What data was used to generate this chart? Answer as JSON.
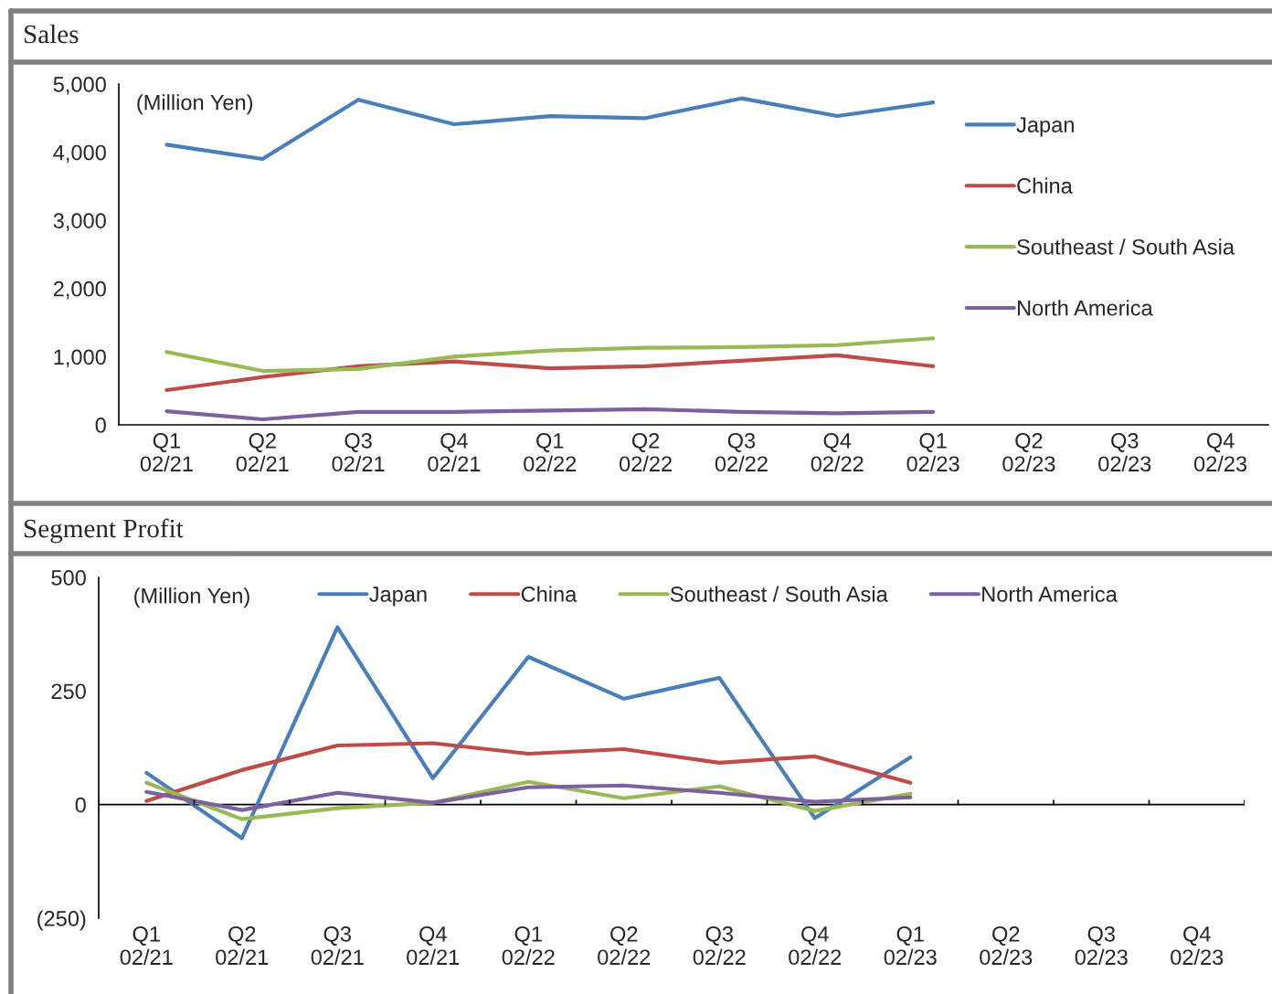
{
  "chart_data": [
    {
      "type": "line",
      "title": "Sales",
      "annotations": [
        "(Million Yen)"
      ],
      "categories": [
        "Q1\n02/21",
        "Q2\n02/21",
        "Q3\n02/21",
        "Q4\n02/21",
        "Q1\n02/22",
        "Q2\n02/22",
        "Q3\n02/22",
        "Q4\n02/22",
        "Q1\n02/23",
        "Q2\n02/23",
        "Q3\n02/23",
        "Q4\n02/23"
      ],
      "series": [
        {
          "name": "Japan",
          "color": "#4a7ebb",
          "values": [
            4110,
            3900,
            4770,
            4410,
            4530,
            4500,
            4790,
            4530,
            4730,
            null,
            null,
            null
          ]
        },
        {
          "name": "China",
          "color": "#be4b48",
          "values": [
            510,
            700,
            860,
            930,
            830,
            860,
            940,
            1020,
            860,
            null,
            null,
            null
          ]
        },
        {
          "name": "Southeast / South Asia",
          "color": "#98b954",
          "values": [
            1070,
            790,
            820,
            1000,
            1090,
            1130,
            1140,
            1170,
            1270,
            null,
            null,
            null
          ]
        },
        {
          "name": "North America",
          "color": "#7d60a0",
          "values": [
            200,
            80,
            190,
            190,
            210,
            230,
            190,
            170,
            190,
            null,
            null,
            null
          ]
        }
      ],
      "ylim": [
        0,
        5000
      ],
      "yticks": [
        {
          "value": 0,
          "label": "0"
        },
        {
          "value": 1000,
          "label": "1,000"
        },
        {
          "value": 2000,
          "label": "2,000"
        },
        {
          "value": 3000,
          "label": "3,000"
        },
        {
          "value": 4000,
          "label": "4,000"
        },
        {
          "value": 5000,
          "label": "5,000"
        }
      ],
      "grid": false,
      "legend": "right",
      "marker": "none",
      "line_style": "solid"
    },
    {
      "type": "line",
      "title": "Segment Profit",
      "annotations": [
        "(Million Yen)"
      ],
      "categories": [
        "Q1\n02/21",
        "Q2\n02/21",
        "Q3\n02/21",
        "Q4\n02/21",
        "Q1\n02/22",
        "Q2\n02/22",
        "Q3\n02/22",
        "Q4\n02/22",
        "Q1\n02/23",
        "Q2\n02/23",
        "Q3\n02/23",
        "Q4\n02/23"
      ],
      "series": [
        {
          "name": "Japan",
          "color": "#4a7ebb",
          "values": [
            70,
            -74,
            390,
            58,
            325,
            233,
            279,
            -30,
            104,
            null,
            null,
            null
          ]
        },
        {
          "name": "China",
          "color": "#be4b48",
          "values": [
            8,
            76,
            130,
            135,
            112,
            122,
            92,
            106,
            48,
            null,
            null,
            null
          ]
        },
        {
          "name": "Southeast / South Asia",
          "color": "#98b954",
          "values": [
            48,
            -32,
            -8,
            4,
            50,
            14,
            40,
            -14,
            24,
            null,
            null,
            null
          ]
        },
        {
          "name": "North America",
          "color": "#7d60a0",
          "values": [
            28,
            -12,
            26,
            4,
            38,
            42,
            26,
            6,
            16,
            null,
            null,
            null
          ]
        }
      ],
      "ylim": [
        -250,
        500
      ],
      "yticks": [
        {
          "value": -250,
          "label": "(250)"
        },
        0,
        250,
        500
      ],
      "ref_lines": [
        {
          "axis": "y",
          "value": 0,
          "color": "#000000"
        }
      ],
      "grid": false,
      "legend": "top",
      "marker": "none",
      "line_style": "solid"
    }
  ]
}
